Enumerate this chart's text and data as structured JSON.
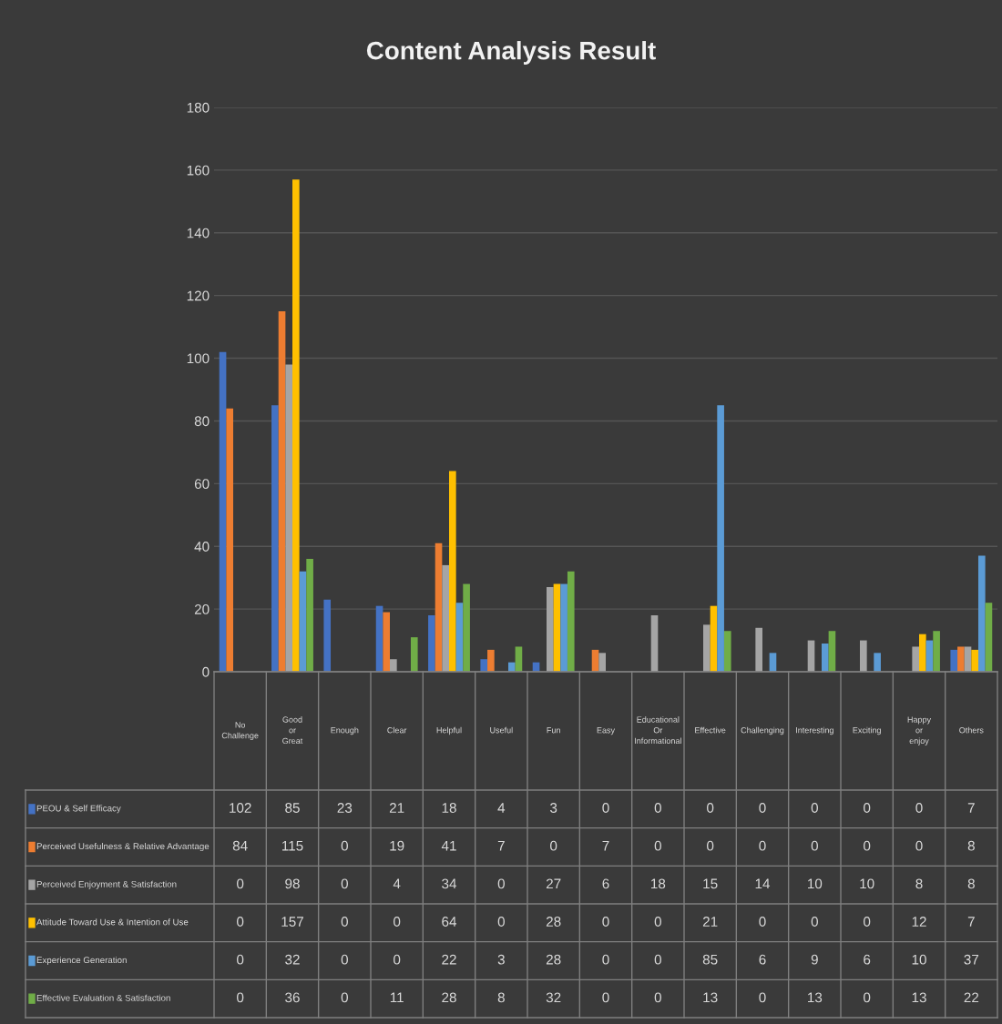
{
  "chart_data": {
    "type": "bar",
    "title": "Content Analysis Result",
    "categories": [
      "No Challenge",
      "Good or Great",
      "Enough",
      "Clear",
      "Helpful",
      "Useful",
      "Fun",
      "Easy",
      "Educational Or Informational",
      "Effective",
      "Challenging",
      "Interesting",
      "Exciting",
      "Happy or enjoy",
      "Others"
    ],
    "series": [
      {
        "name": "PEOU & Self Efficacy",
        "color": "#4472c4",
        "values": [
          102,
          85,
          23,
          21,
          18,
          4,
          3,
          0,
          0,
          0,
          0,
          0,
          0,
          0,
          7
        ]
      },
      {
        "name": "Perceived Usefulness & Relative Advantage",
        "color": "#ed7d31",
        "values": [
          84,
          115,
          0,
          19,
          41,
          7,
          0,
          7,
          0,
          0,
          0,
          0,
          0,
          0,
          8
        ]
      },
      {
        "name": "Perceived Enjoyment & Satisfaction",
        "color": "#a5a5a5",
        "values": [
          0,
          98,
          0,
          4,
          34,
          0,
          27,
          6,
          18,
          15,
          14,
          10,
          10,
          8,
          8
        ]
      },
      {
        "name": "Attitude Toward Use & Intention of Use",
        "color": "#ffc000",
        "values": [
          0,
          157,
          0,
          0,
          64,
          0,
          28,
          0,
          0,
          21,
          0,
          0,
          0,
          12,
          7
        ]
      },
      {
        "name": "Experience Generation",
        "color": "#5b9bd5",
        "values": [
          0,
          32,
          0,
          0,
          22,
          3,
          28,
          0,
          0,
          85,
          6,
          9,
          6,
          10,
          37
        ]
      },
      {
        "name": "Effective Evaluation & Satisfaction",
        "color": "#70ad47",
        "values": [
          0,
          36,
          0,
          11,
          28,
          8,
          32,
          0,
          0,
          13,
          0,
          13,
          0,
          13,
          22
        ]
      }
    ],
    "ylim": [
      0,
      180
    ],
    "yticks": [
      0,
      20,
      40,
      60,
      80,
      100,
      120,
      140,
      160,
      180
    ],
    "grid": "y",
    "data_labels": true,
    "legend": "bottom"
  }
}
